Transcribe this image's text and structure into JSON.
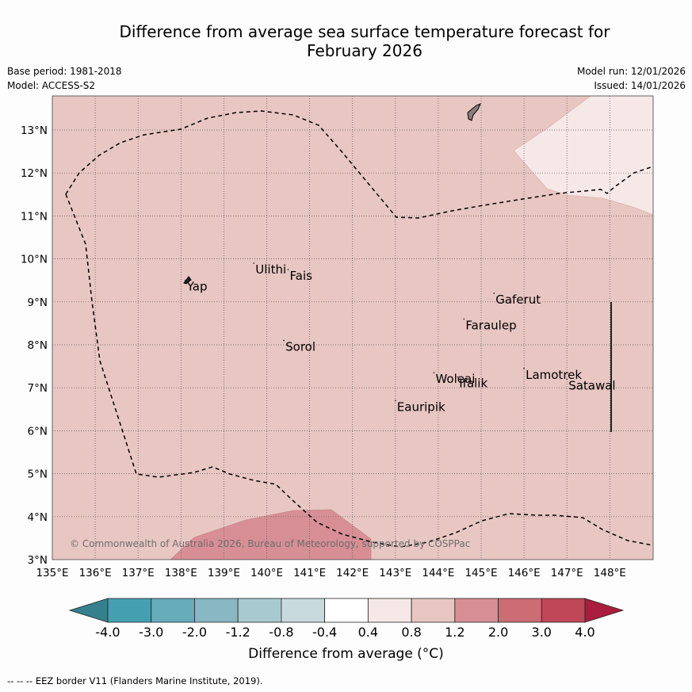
{
  "title": {
    "line1": "Difference from average sea surface temperature forecast for",
    "line2": "February 2026"
  },
  "meta": {
    "base_period": "Base period: 1981-2018",
    "model": "Model: ACCESS-S2",
    "model_run": "Model run: 12/01/2026",
    "issued": "Issued: 14/01/2026"
  },
  "map": {
    "lon_range": [
      135,
      149
    ],
    "lat_range": [
      3,
      13.8
    ],
    "lon_ticks": [
      "135°E",
      "136°E",
      "137°E",
      "138°E",
      "139°E",
      "140°E",
      "141°E",
      "142°E",
      "143°E",
      "144°E",
      "145°E",
      "146°E",
      "147°E",
      "148°E"
    ],
    "lat_ticks": [
      "3°N",
      "4°N",
      "5°N",
      "6°N",
      "7°N",
      "8°N",
      "9°N",
      "10°N",
      "11°N",
      "12°N",
      "13°N"
    ],
    "copyright": "© Commonwealth of Australia 2026, Bureau of Meteorology, supported by COSPPac",
    "islands": [
      {
        "name": "Yap",
        "lon": 138.1,
        "lat": 9.5
      },
      {
        "name": "Ulithi",
        "lon": 139.7,
        "lat": 9.9
      },
      {
        "name": "Fais",
        "lon": 140.5,
        "lat": 9.75
      },
      {
        "name": "Sorol",
        "lon": 140.4,
        "lat": 8.1
      },
      {
        "name": "Gaferut",
        "lon": 145.3,
        "lat": 9.2
      },
      {
        "name": "Faraulep",
        "lon": 144.6,
        "lat": 8.6
      },
      {
        "name": "Woleai",
        "lon": 143.9,
        "lat": 7.35
      },
      {
        "name": "Ifalik",
        "lon": 144.45,
        "lat": 7.25
      },
      {
        "name": "Lamotrek",
        "lon": 146.0,
        "lat": 7.45
      },
      {
        "name": "Satawal",
        "lon": 147.0,
        "lat": 7.2
      },
      {
        "name": "Eauripik",
        "lon": 143.0,
        "lat": 6.7
      }
    ]
  },
  "colorbar": {
    "ticks": [
      "-4.0",
      "-3.0",
      "-2.0",
      "-1.2",
      "-0.8",
      "-0.4",
      "0.4",
      "0.8",
      "1.2",
      "2.0",
      "3.0",
      "4.0"
    ],
    "colors": [
      "#36808e",
      "#44a0b0",
      "#66acbb",
      "#89b7c3",
      "#a9c9d0",
      "#c9dade",
      "#ffffff",
      "#f5e8e7",
      "#e8c6c2",
      "#d78f95",
      "#cc6c74",
      "#bf4757",
      "#a91e3e"
    ],
    "label": "Difference from average (°C)"
  },
  "footer": "--  --  -- EEZ border V11 (Flanders Marine Institute, 2019)."
}
